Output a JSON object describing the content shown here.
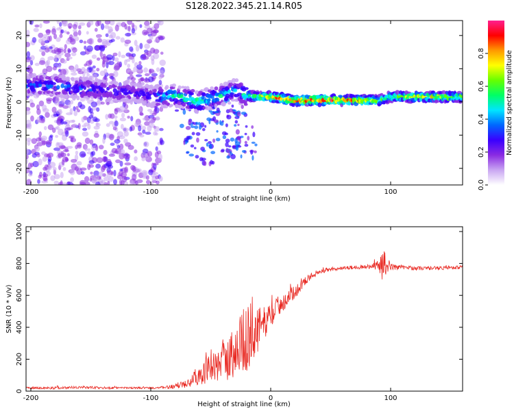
{
  "figure": {
    "title": "S128.2022.345.21.14.R05"
  },
  "chart_data": [
    {
      "type": "heatmap",
      "xlabel": "Height of straight line (km)",
      "ylabel": "Frequency (Hz)",
      "xlim": [
        -204,
        160
      ],
      "ylim": [
        -25,
        24.5
      ],
      "xticks": [
        -200,
        -100,
        0,
        100
      ],
      "yticks": [
        -20,
        -10,
        0,
        10,
        20
      ],
      "colorbar": {
        "label": "Normalized spectral amplitude",
        "range": [
          0,
          1
        ],
        "ticks": [
          0.0,
          0.2,
          0.4,
          0.6,
          0.8
        ],
        "colors": [
          "#ffffff",
          "#c9a6f2",
          "#8a2be2",
          "#3a00ff",
          "#0066ff",
          "#00e5ff",
          "#00ff66",
          "#66ff00",
          "#ffff00",
          "#ff9900",
          "#ff0000",
          "#ff1f8f"
        ]
      },
      "ridge": {
        "x": [
          -200,
          -180,
          -160,
          -140,
          -120,
          -100,
          -90,
          -80,
          -70,
          -60,
          -50,
          -40,
          -30,
          -20,
          -10,
          0,
          20,
          40,
          60,
          80,
          90,
          95,
          100,
          120,
          140,
          160
        ],
        "y": [
          5,
          5,
          4,
          3.5,
          3,
          2,
          1.5,
          2,
          1,
          0,
          1,
          2,
          3.5,
          2,
          1.5,
          1.5,
          0.5,
          0.5,
          0.5,
          0.5,
          0.5,
          1,
          1.5,
          1.5,
          1.5,
          1.5
        ],
        "peak_amplitude": [
          0.35,
          0.4,
          0.35,
          0.3,
          0.3,
          0.3,
          0.45,
          0.5,
          0.55,
          0.55,
          0.5,
          0.5,
          0.45,
          0.6,
          0.75,
          0.8,
          0.95,
          0.95,
          0.9,
          0.85,
          0.7,
          0.6,
          0.7,
          0.75,
          0.75,
          0.7
        ]
      }
    },
    {
      "type": "line",
      "xlabel": "Height of straight line (km)",
      "ylabel": "SNR (10 * v/v)",
      "xlim": [
        -204,
        160
      ],
      "ylim": [
        0,
        1030
      ],
      "xticks": [
        -200,
        -100,
        0,
        100
      ],
      "yticks": [
        0,
        200,
        400,
        600,
        800,
        1000
      ],
      "color": "#e8261f",
      "series": [
        {
          "x": [
            -204,
            -180,
            -160,
            -140,
            -120,
            -100,
            -90,
            -80,
            -75,
            -70,
            -60,
            -50,
            -40,
            -30,
            -25,
            -20,
            -15,
            -10,
            -5,
            0,
            10,
            20,
            30,
            40,
            50,
            60,
            70,
            80,
            90,
            93,
            95,
            100,
            110,
            120,
            130,
            140,
            150,
            160
          ],
          "y": [
            20,
            20,
            25,
            20,
            20,
            20,
            22,
            30,
            40,
            60,
            100,
            140,
            180,
            250,
            300,
            330,
            370,
            380,
            430,
            480,
            560,
            620,
            700,
            750,
            760,
            770,
            775,
            780,
            790,
            800,
            800,
            780,
            775,
            770,
            770,
            770,
            775,
            775
          ],
          "noise": [
            8,
            8,
            8,
            8,
            6,
            6,
            8,
            15,
            25,
            40,
            60,
            90,
            120,
            180,
            200,
            210,
            200,
            150,
            100,
            80,
            60,
            40,
            25,
            15,
            12,
            12,
            12,
            12,
            30,
            120,
            80,
            20,
            12,
            12,
            12,
            12,
            12,
            12
          ]
        }
      ]
    }
  ]
}
